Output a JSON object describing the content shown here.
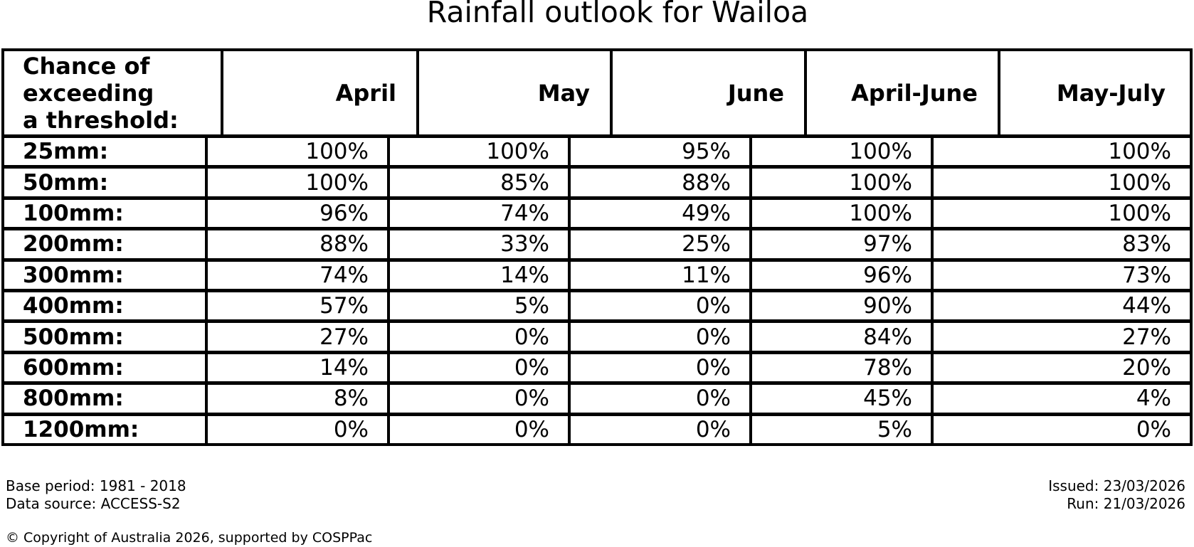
{
  "title": "Rainfall outlook for Wailoa",
  "colors": {
    "text": "#000000",
    "border": "#000000",
    "background": "#ffffff"
  },
  "table": {
    "corner_lines": [
      "Chance of",
      "exceeding",
      "a threshold:"
    ],
    "columns": [
      "April",
      "May",
      "June",
      "April-June",
      "May-July"
    ],
    "rows": [
      {
        "threshold": "25mm:",
        "values": [
          "100%",
          "100%",
          "95%",
          "100%",
          "100%"
        ]
      },
      {
        "threshold": "50mm:",
        "values": [
          "100%",
          "85%",
          "88%",
          "100%",
          "100%"
        ]
      },
      {
        "threshold": "100mm:",
        "values": [
          "96%",
          "74%",
          "49%",
          "100%",
          "100%"
        ]
      },
      {
        "threshold": "200mm:",
        "values": [
          "88%",
          "33%",
          "25%",
          "97%",
          "83%"
        ]
      },
      {
        "threshold": "300mm:",
        "values": [
          "74%",
          "14%",
          "11%",
          "96%",
          "73%"
        ]
      },
      {
        "threshold": "400mm:",
        "values": [
          "57%",
          "5%",
          "0%",
          "90%",
          "44%"
        ]
      },
      {
        "threshold": "500mm:",
        "values": [
          "27%",
          "0%",
          "0%",
          "84%",
          "27%"
        ]
      },
      {
        "threshold": "600mm:",
        "values": [
          "14%",
          "0%",
          "0%",
          "78%",
          "20%"
        ]
      },
      {
        "threshold": "800mm:",
        "values": [
          "8%",
          "0%",
          "0%",
          "45%",
          "4%"
        ]
      },
      {
        "threshold": "1200mm:",
        "values": [
          "0%",
          "0%",
          "0%",
          "5%",
          "0%"
        ]
      }
    ]
  },
  "footer": {
    "base_period": "Base period: 1981 - 2018",
    "data_source": "Data source: ACCESS-S2",
    "issued": "Issued: 23/03/2026",
    "run": "Run: 21/03/2026",
    "copyright": "© Copyright of Australia 2026, supported by COSPPac"
  },
  "chart_data": {
    "type": "table",
    "title": "Rainfall outlook for Wailoa",
    "row_header": "Chance of exceeding a threshold:",
    "columns": [
      "April",
      "May",
      "June",
      "April-June",
      "May-July"
    ],
    "row_labels": [
      "25mm",
      "50mm",
      "100mm",
      "200mm",
      "300mm",
      "400mm",
      "500mm",
      "600mm",
      "800mm",
      "1200mm"
    ],
    "values_percent": [
      [
        100,
        100,
        95,
        100,
        100
      ],
      [
        100,
        85,
        88,
        100,
        100
      ],
      [
        96,
        74,
        49,
        100,
        100
      ],
      [
        88,
        33,
        25,
        97,
        83
      ],
      [
        74,
        14,
        11,
        96,
        73
      ],
      [
        57,
        5,
        0,
        90,
        44
      ],
      [
        27,
        0,
        0,
        84,
        27
      ],
      [
        14,
        0,
        0,
        78,
        20
      ],
      [
        8,
        0,
        0,
        45,
        4
      ],
      [
        0,
        0,
        0,
        5,
        0
      ]
    ],
    "base_period": "1981 - 2018",
    "data_source": "ACCESS-S2",
    "issued": "23/03/2026",
    "run": "21/03/2026"
  }
}
